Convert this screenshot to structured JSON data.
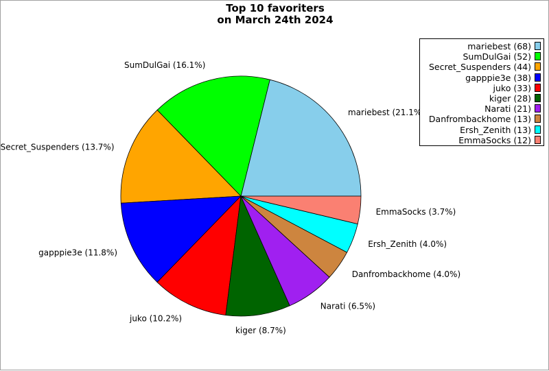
{
  "chart_data": {
    "type": "pie",
    "title_lines": [
      "Top 10 favoriters",
      "on March 24th 2024"
    ],
    "legend_position": "top-right",
    "slices": [
      {
        "name": "mariebest",
        "value": 68,
        "percent": "21.1%",
        "color": "#87ceeb",
        "legend": "mariebest (68)",
        "label": "mariebest (21.1%)"
      },
      {
        "name": "SumDulGai",
        "value": 52,
        "percent": "16.1%",
        "color": "#00ff00",
        "legend": "SumDulGai (52)",
        "label": "SumDulGai (16.1%)"
      },
      {
        "name": "Secret_Suspenders",
        "value": 44,
        "percent": "13.7%",
        "color": "#ffa500",
        "legend": "Secret_Suspenders (44)",
        "label": "Secret_Suspenders (13.7%)"
      },
      {
        "name": "gapppie3e",
        "value": 38,
        "percent": "11.8%",
        "color": "#0000ff",
        "legend": "gapppie3e (38)",
        "label": "gapppie3e (11.8%)"
      },
      {
        "name": "juko",
        "value": 33,
        "percent": "10.2%",
        "color": "#ff0000",
        "legend": "juko (33)",
        "label": "juko (10.2%)"
      },
      {
        "name": "kiger",
        "value": 28,
        "percent": "8.7%",
        "color": "#006400",
        "legend": "kiger (28)",
        "label": "kiger (8.7%)"
      },
      {
        "name": "Narati",
        "value": 21,
        "percent": "6.5%",
        "color": "#a020f0",
        "legend": "Narati (21)",
        "label": "Narati (6.5%)"
      },
      {
        "name": "Danfrombackhome",
        "value": 13,
        "percent": "4.0%",
        "color": "#cd853f",
        "legend": "Danfrombackhome (13)",
        "label": "Danfrombackhome (4.0%)"
      },
      {
        "name": "Ersh_Zenith",
        "value": 13,
        "percent": "4.0%",
        "color": "#00ffff",
        "legend": "Ersh_Zenith (13)",
        "label": "Ersh_Zenith (4.0%)"
      },
      {
        "name": "EmmaSocks",
        "value": 12,
        "percent": "3.7%",
        "color": "#fa8072",
        "legend": "EmmaSocks (12)",
        "label": "EmmaSocks (3.7%)"
      }
    ]
  }
}
